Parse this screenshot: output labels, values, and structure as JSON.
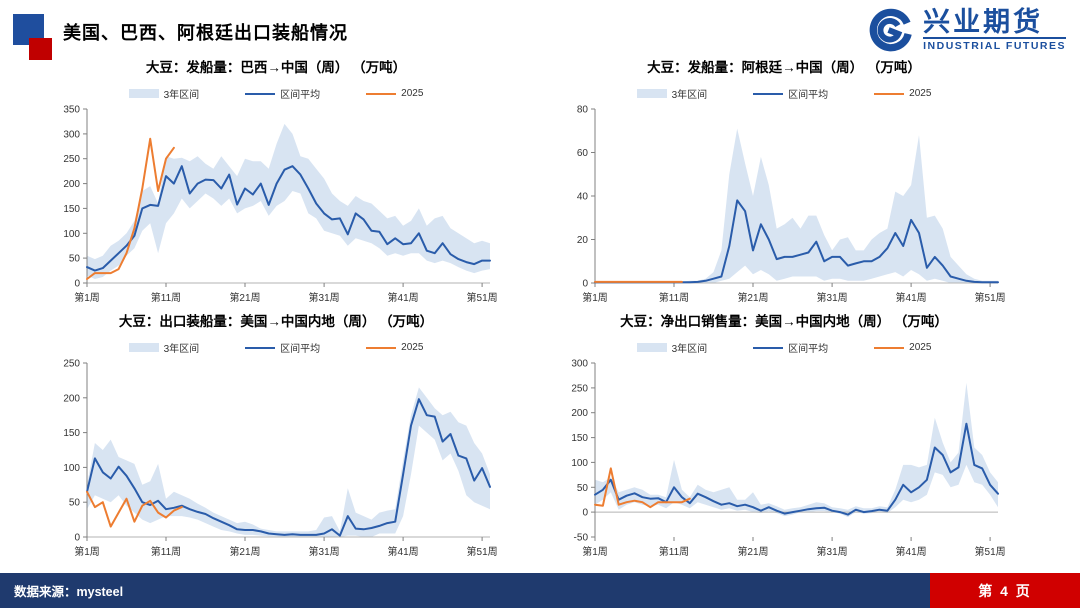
{
  "header": {
    "title": "美国、巴西、阿根廷出口装船情况",
    "logo_cn": "兴业期货",
    "logo_en": "INDUSTRIAL FUTURES"
  },
  "footer": {
    "source": "数据来源：mysteel",
    "page": "第 4 页"
  },
  "colors": {
    "band": "#d8e4f2",
    "mean_line": "#2a5caa",
    "line_2025": "#ed7d31",
    "axis": "#808080",
    "zero_line": "#b3b3b3",
    "footer_bg": "#1f3a6e",
    "page_box_red": "#d00000",
    "marker_blue": "#1f4e9e",
    "marker_red": "#c00000",
    "logo_blue": "#1b4f9e"
  },
  "chart_data": [
    {
      "type": "line",
      "title": "大豆：发船量：巴西→中国（周） （万吨）",
      "legend": [
        "3年区间",
        "区间平均",
        "2025"
      ],
      "x_tick_labels": [
        "第1周",
        "第11周",
        "第21周",
        "第31周",
        "第41周",
        "第51周"
      ],
      "x_tick_weeks": [
        1,
        11,
        21,
        31,
        41,
        51
      ],
      "weeks": 52,
      "ylim": [
        0,
        350
      ],
      "yticks": [
        0,
        50,
        100,
        150,
        200,
        250,
        300,
        350
      ],
      "grid": false,
      "legend_position": "top",
      "series": [
        {
          "name": "3年区间",
          "type": "band",
          "upper": [
            55,
            48,
            55,
            75,
            85,
            100,
            125,
            185,
            195,
            160,
            255,
            250,
            252,
            245,
            255,
            240,
            230,
            255,
            235,
            215,
            250,
            245,
            245,
            230,
            280,
            320,
            300,
            255,
            250,
            230,
            210,
            180,
            165,
            155,
            175,
            165,
            160,
            145,
            130,
            135,
            115,
            125,
            150,
            115,
            130,
            135,
            110,
            100,
            90,
            80,
            85,
            80
          ],
          "lower": [
            15,
            8,
            12,
            25,
            35,
            55,
            70,
            105,
            120,
            60,
            120,
            140,
            170,
            150,
            165,
            180,
            170,
            155,
            170,
            140,
            150,
            155,
            165,
            135,
            155,
            165,
            185,
            180,
            140,
            130,
            105,
            100,
            95,
            75,
            90,
            85,
            80,
            70,
            55,
            60,
            55,
            60,
            60,
            45,
            40,
            45,
            40,
            32,
            25,
            20,
            25,
            28
          ]
        },
        {
          "name": "区间平均",
          "type": "line",
          "values": [
            32,
            25,
            30,
            45,
            60,
            75,
            95,
            150,
            157,
            155,
            215,
            200,
            235,
            180,
            200,
            208,
            207,
            190,
            218,
            158,
            190,
            178,
            200,
            157,
            200,
            228,
            235,
            218,
            190,
            160,
            140,
            128,
            130,
            98,
            140,
            128,
            105,
            103,
            78,
            90,
            78,
            80,
            100,
            65,
            60,
            80,
            58,
            48,
            42,
            38,
            45,
            45
          ]
        },
        {
          "name": "2025",
          "type": "line",
          "values": [
            8,
            20,
            20,
            20,
            28,
            60,
            110,
            190,
            290,
            185,
            250,
            272
          ]
        }
      ]
    },
    {
      "type": "line",
      "title": "大豆：发船量：阿根廷→中国（周） （万吨）",
      "legend": [
        "3年区间",
        "区间平均",
        "2025"
      ],
      "x_tick_labels": [
        "第1周",
        "第11周",
        "第21周",
        "第31周",
        "第41周",
        "第51周"
      ],
      "x_tick_weeks": [
        1,
        11,
        21,
        31,
        41,
        51
      ],
      "weeks": 52,
      "ylim": [
        0,
        80
      ],
      "yticks": [
        0,
        20,
        40,
        60,
        80
      ],
      "grid": false,
      "legend_position": "top",
      "series": [
        {
          "name": "3年区间",
          "type": "band",
          "upper": [
            0.5,
            0.5,
            0.5,
            0.5,
            0.5,
            0.5,
            0.5,
            0.5,
            0.5,
            0.5,
            0.5,
            0.5,
            1,
            1,
            2,
            5,
            15,
            50,
            71,
            55,
            40,
            58,
            45,
            25,
            27,
            30,
            25,
            31,
            31,
            22,
            15,
            20,
            21,
            15,
            15,
            20,
            23,
            25,
            42,
            40,
            45,
            68,
            30,
            31,
            25,
            12,
            8,
            4,
            2,
            1,
            1,
            1
          ],
          "lower": [
            0,
            0,
            0,
            0,
            0,
            0,
            0,
            0,
            0,
            0,
            0,
            0,
            0,
            0,
            0,
            0,
            1,
            2,
            5,
            8,
            4,
            6,
            4,
            1,
            2,
            3,
            3,
            3,
            3,
            1,
            2,
            2,
            1,
            1,
            1,
            2,
            3,
            4,
            5,
            3,
            6,
            4,
            1,
            2,
            1,
            0,
            0,
            0,
            0,
            0,
            0,
            0
          ]
        },
        {
          "name": "区间平均",
          "type": "line",
          "values": [
            0.3,
            0.3,
            0.3,
            0.3,
            0.3,
            0.3,
            0.3,
            0.3,
            0.3,
            0.3,
            0.3,
            0.3,
            0.3,
            0.5,
            1,
            2,
            3,
            17,
            38,
            33,
            15,
            27,
            20,
            11,
            12,
            12,
            13,
            14,
            19,
            10,
            12,
            12,
            8,
            9,
            10,
            10,
            12,
            16,
            23,
            17,
            29,
            23,
            7,
            12,
            8,
            3,
            2,
            1,
            0.5,
            0.3,
            0.3,
            0.3
          ]
        },
        {
          "name": "2025",
          "type": "line",
          "values": [
            0.5,
            0.5,
            0.5,
            0.5,
            0.5,
            0.5,
            0.5,
            0.5,
            0.5,
            0.5,
            0.5,
            0.5
          ]
        }
      ]
    },
    {
      "type": "line",
      "title": "大豆：出口装船量：美国→中国内地（周） （万吨）",
      "legend": [
        "3年区间",
        "区间平均",
        "2025"
      ],
      "x_tick_labels": [
        "第1周",
        "第11周",
        "第21周",
        "第31周",
        "第41周",
        "第51周"
      ],
      "x_tick_weeks": [
        1,
        11,
        21,
        31,
        41,
        51
      ],
      "weeks": 52,
      "ylim": [
        0,
        250
      ],
      "yticks": [
        0,
        50,
        100,
        150,
        200,
        250
      ],
      "grid": false,
      "legend_position": "top",
      "series": [
        {
          "name": "3年区间",
          "type": "band",
          "upper": [
            75,
            135,
            125,
            140,
            115,
            110,
            105,
            75,
            80,
            105,
            55,
            65,
            60,
            55,
            48,
            42,
            35,
            30,
            25,
            20,
            22,
            18,
            12,
            10,
            8,
            8,
            8,
            8,
            8,
            10,
            28,
            30,
            8,
            70,
            35,
            30,
            25,
            35,
            38,
            40,
            110,
            175,
            215,
            200,
            185,
            175,
            180,
            165,
            160,
            135,
            120,
            90
          ],
          "lower": [
            40,
            60,
            55,
            50,
            60,
            45,
            35,
            25,
            20,
            25,
            30,
            30,
            30,
            28,
            25,
            20,
            15,
            10,
            8,
            5,
            3,
            3,
            2,
            1,
            1,
            0,
            0,
            0,
            0,
            0,
            0,
            0,
            0,
            2,
            2,
            0,
            0,
            5,
            5,
            5,
            30,
            90,
            160,
            150,
            140,
            110,
            120,
            95,
            60,
            50,
            45,
            40
          ]
        },
        {
          "name": "区间平均",
          "type": "line",
          "values": [
            65,
            113,
            93,
            84,
            101,
            88,
            70,
            50,
            46,
            52,
            40,
            42,
            45,
            40,
            36,
            33,
            27,
            22,
            17,
            11,
            10,
            10,
            8,
            5,
            4,
            3,
            4,
            3,
            3,
            3,
            5,
            11,
            2,
            30,
            12,
            11,
            13,
            16,
            20,
            22,
            90,
            160,
            198,
            175,
            173,
            137,
            148,
            117,
            113,
            81,
            99,
            72
          ]
        },
        {
          "name": "2025",
          "type": "line",
          "values": [
            65,
            43,
            50,
            15,
            35,
            55,
            22,
            45,
            52,
            35,
            28,
            38,
            43
          ]
        }
      ]
    },
    {
      "type": "line",
      "title": "大豆：净出口销售量：美国→中国内地（周） （万吨）",
      "legend": [
        "3年区间",
        "区间平均",
        "2025"
      ],
      "x_tick_labels": [
        "第1周",
        "第11周",
        "第21周",
        "第31周",
        "第41周",
        "第51周"
      ],
      "x_tick_weeks": [
        1,
        11,
        21,
        31,
        41,
        51
      ],
      "weeks": 52,
      "ylim": [
        -50,
        300
      ],
      "yticks": [
        -50,
        0,
        50,
        100,
        150,
        200,
        250,
        300
      ],
      "grid": false,
      "legend_position": "top",
      "series": [
        {
          "name": "3年区间",
          "type": "band",
          "upper": [
            65,
            60,
            70,
            40,
            45,
            50,
            45,
            35,
            35,
            30,
            105,
            45,
            30,
            55,
            45,
            40,
            45,
            50,
            25,
            25,
            40,
            15,
            18,
            12,
            5,
            8,
            10,
            15,
            20,
            18,
            10,
            8,
            5,
            12,
            8,
            8,
            12,
            10,
            45,
            95,
            95,
            90,
            95,
            190,
            140,
            100,
            120,
            260,
            130,
            115,
            80,
            60
          ],
          "lower": [
            15,
            25,
            40,
            5,
            15,
            20,
            15,
            12,
            15,
            8,
            20,
            15,
            8,
            20,
            15,
            10,
            5,
            8,
            3,
            5,
            0,
            -2,
            2,
            -2,
            -8,
            -5,
            0,
            0,
            2,
            2,
            0,
            -3,
            -10,
            0,
            -3,
            -2,
            0,
            -2,
            10,
            25,
            20,
            25,
            35,
            80,
            75,
            50,
            55,
            95,
            60,
            55,
            35,
            10
          ]
        },
        {
          "name": "区间平均",
          "type": "line",
          "values": [
            35,
            45,
            65,
            25,
            33,
            38,
            30,
            27,
            28,
            20,
            50,
            30,
            18,
            37,
            30,
            22,
            15,
            18,
            12,
            15,
            10,
            3,
            10,
            3,
            -3,
            0,
            3,
            6,
            8,
            9,
            3,
            0,
            -5,
            5,
            0,
            2,
            5,
            3,
            25,
            55,
            40,
            50,
            65,
            130,
            115,
            80,
            90,
            178,
            95,
            88,
            55,
            37
          ]
        },
        {
          "name": "2025",
          "type": "line",
          "values": [
            15,
            13,
            88,
            15,
            20,
            23,
            20,
            10,
            20,
            20,
            20,
            20,
            27
          ]
        }
      ]
    }
  ]
}
